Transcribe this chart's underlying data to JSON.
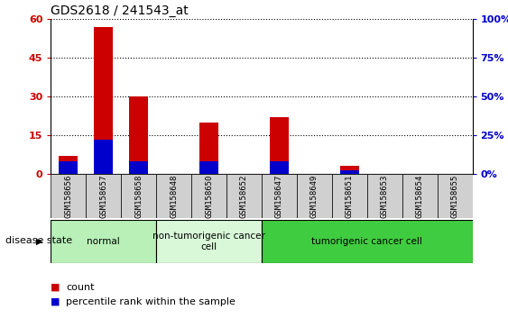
{
  "title": "GDS2618 / 241543_at",
  "samples": [
    "GSM158656",
    "GSM158657",
    "GSM158658",
    "GSM158648",
    "GSM158650",
    "GSM158652",
    "GSM158647",
    "GSM158649",
    "GSM158651",
    "GSM158653",
    "GSM158654",
    "GSM158655"
  ],
  "count_values": [
    7,
    57,
    30,
    0,
    20,
    0,
    22,
    0,
    3,
    0,
    0,
    0
  ],
  "percentile_values": [
    8,
    22,
    8,
    0,
    8,
    0,
    8,
    0,
    2,
    0,
    0,
    0
  ],
  "ylim_left": [
    0,
    60
  ],
  "ylim_right": [
    0,
    100
  ],
  "yticks_left": [
    0,
    15,
    30,
    45,
    60
  ],
  "yticks_right": [
    0,
    25,
    50,
    75,
    100
  ],
  "ytick_labels_left": [
    "0",
    "15",
    "30",
    "45",
    "60"
  ],
  "ytick_labels_right": [
    "0%",
    "25%",
    "50%",
    "75%",
    "100%"
  ],
  "groups": [
    {
      "label": "normal",
      "start": 0,
      "end": 3,
      "color": "#b8f0b8"
    },
    {
      "label": "non-tumorigenic cancer\ncell",
      "start": 3,
      "end": 6,
      "color": "#d8f8d8"
    },
    {
      "label": "tumorigenic cancer cell",
      "start": 6,
      "end": 12,
      "color": "#40cc40"
    }
  ],
  "bar_color_count": "#cc0000",
  "bar_color_pct": "#0000cc",
  "bar_width": 0.55,
  "legend_count_label": "count",
  "legend_pct_label": "percentile rank within the sample",
  "disease_state_label": "disease state",
  "title_fontsize": 10,
  "tick_fontsize": 8,
  "sample_fontsize": 6.5
}
